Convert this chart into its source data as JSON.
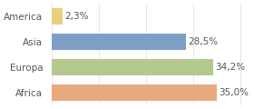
{
  "categories": [
    "America",
    "Asia",
    "Europa",
    "Africa"
  ],
  "values": [
    2.3,
    28.5,
    34.2,
    35.0
  ],
  "labels": [
    "2,3%",
    "28,5%",
    "34,2%",
    "35,0%"
  ],
  "bar_colors": [
    "#e8d080",
    "#7b9fc7",
    "#b5c98e",
    "#e8a97e"
  ],
  "background_color": "#ffffff",
  "xlim": [
    0,
    42
  ],
  "bar_height": 0.62,
  "label_fontsize": 7.5,
  "tick_fontsize": 7.5
}
